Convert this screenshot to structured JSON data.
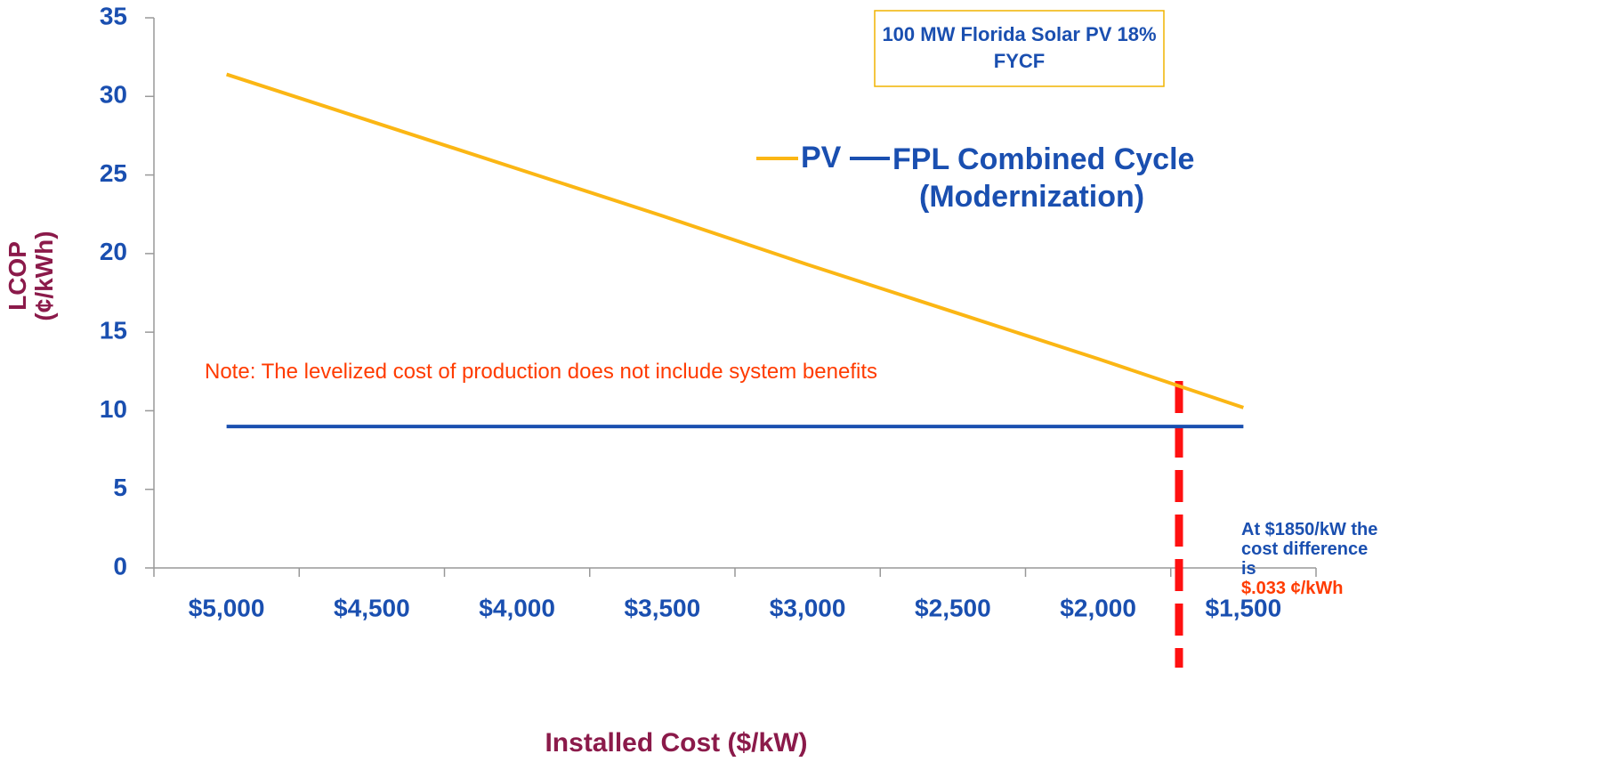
{
  "chart_data": {
    "type": "line",
    "x_label": "Installed Cost ($/kW)",
    "y_label": "LCOP (¢/kWh)",
    "categories": [
      "$5,000",
      "$4,500",
      "$4,000",
      "$3,500",
      "$3,000",
      "$2,500",
      "$2,000",
      "$1,500"
    ],
    "series": [
      {
        "name": "PV",
        "color": "#fbb614",
        "values": [
          31.4,
          28.4,
          25.4,
          22.4,
          19.3,
          16.3,
          13.3,
          10.2
        ]
      },
      {
        "name": "FPL Combined Cycle (Modernization)",
        "color": "#1a4fb0",
        "values": [
          9,
          9,
          9,
          9,
          9,
          9,
          9,
          9
        ]
      }
    ],
    "ylim": [
      0,
      35
    ],
    "yticks": [
      0,
      5,
      10,
      15,
      20,
      25,
      30,
      35
    ],
    "annotations": {
      "box": "100 MW Florida Solar PV 18% FYCF",
      "note": "Note: The levelized cost of production does not include system benefits",
      "difference": "At $1850/kW the cost difference is",
      "difference_value": "$.033 ¢/kWh"
    }
  }
}
